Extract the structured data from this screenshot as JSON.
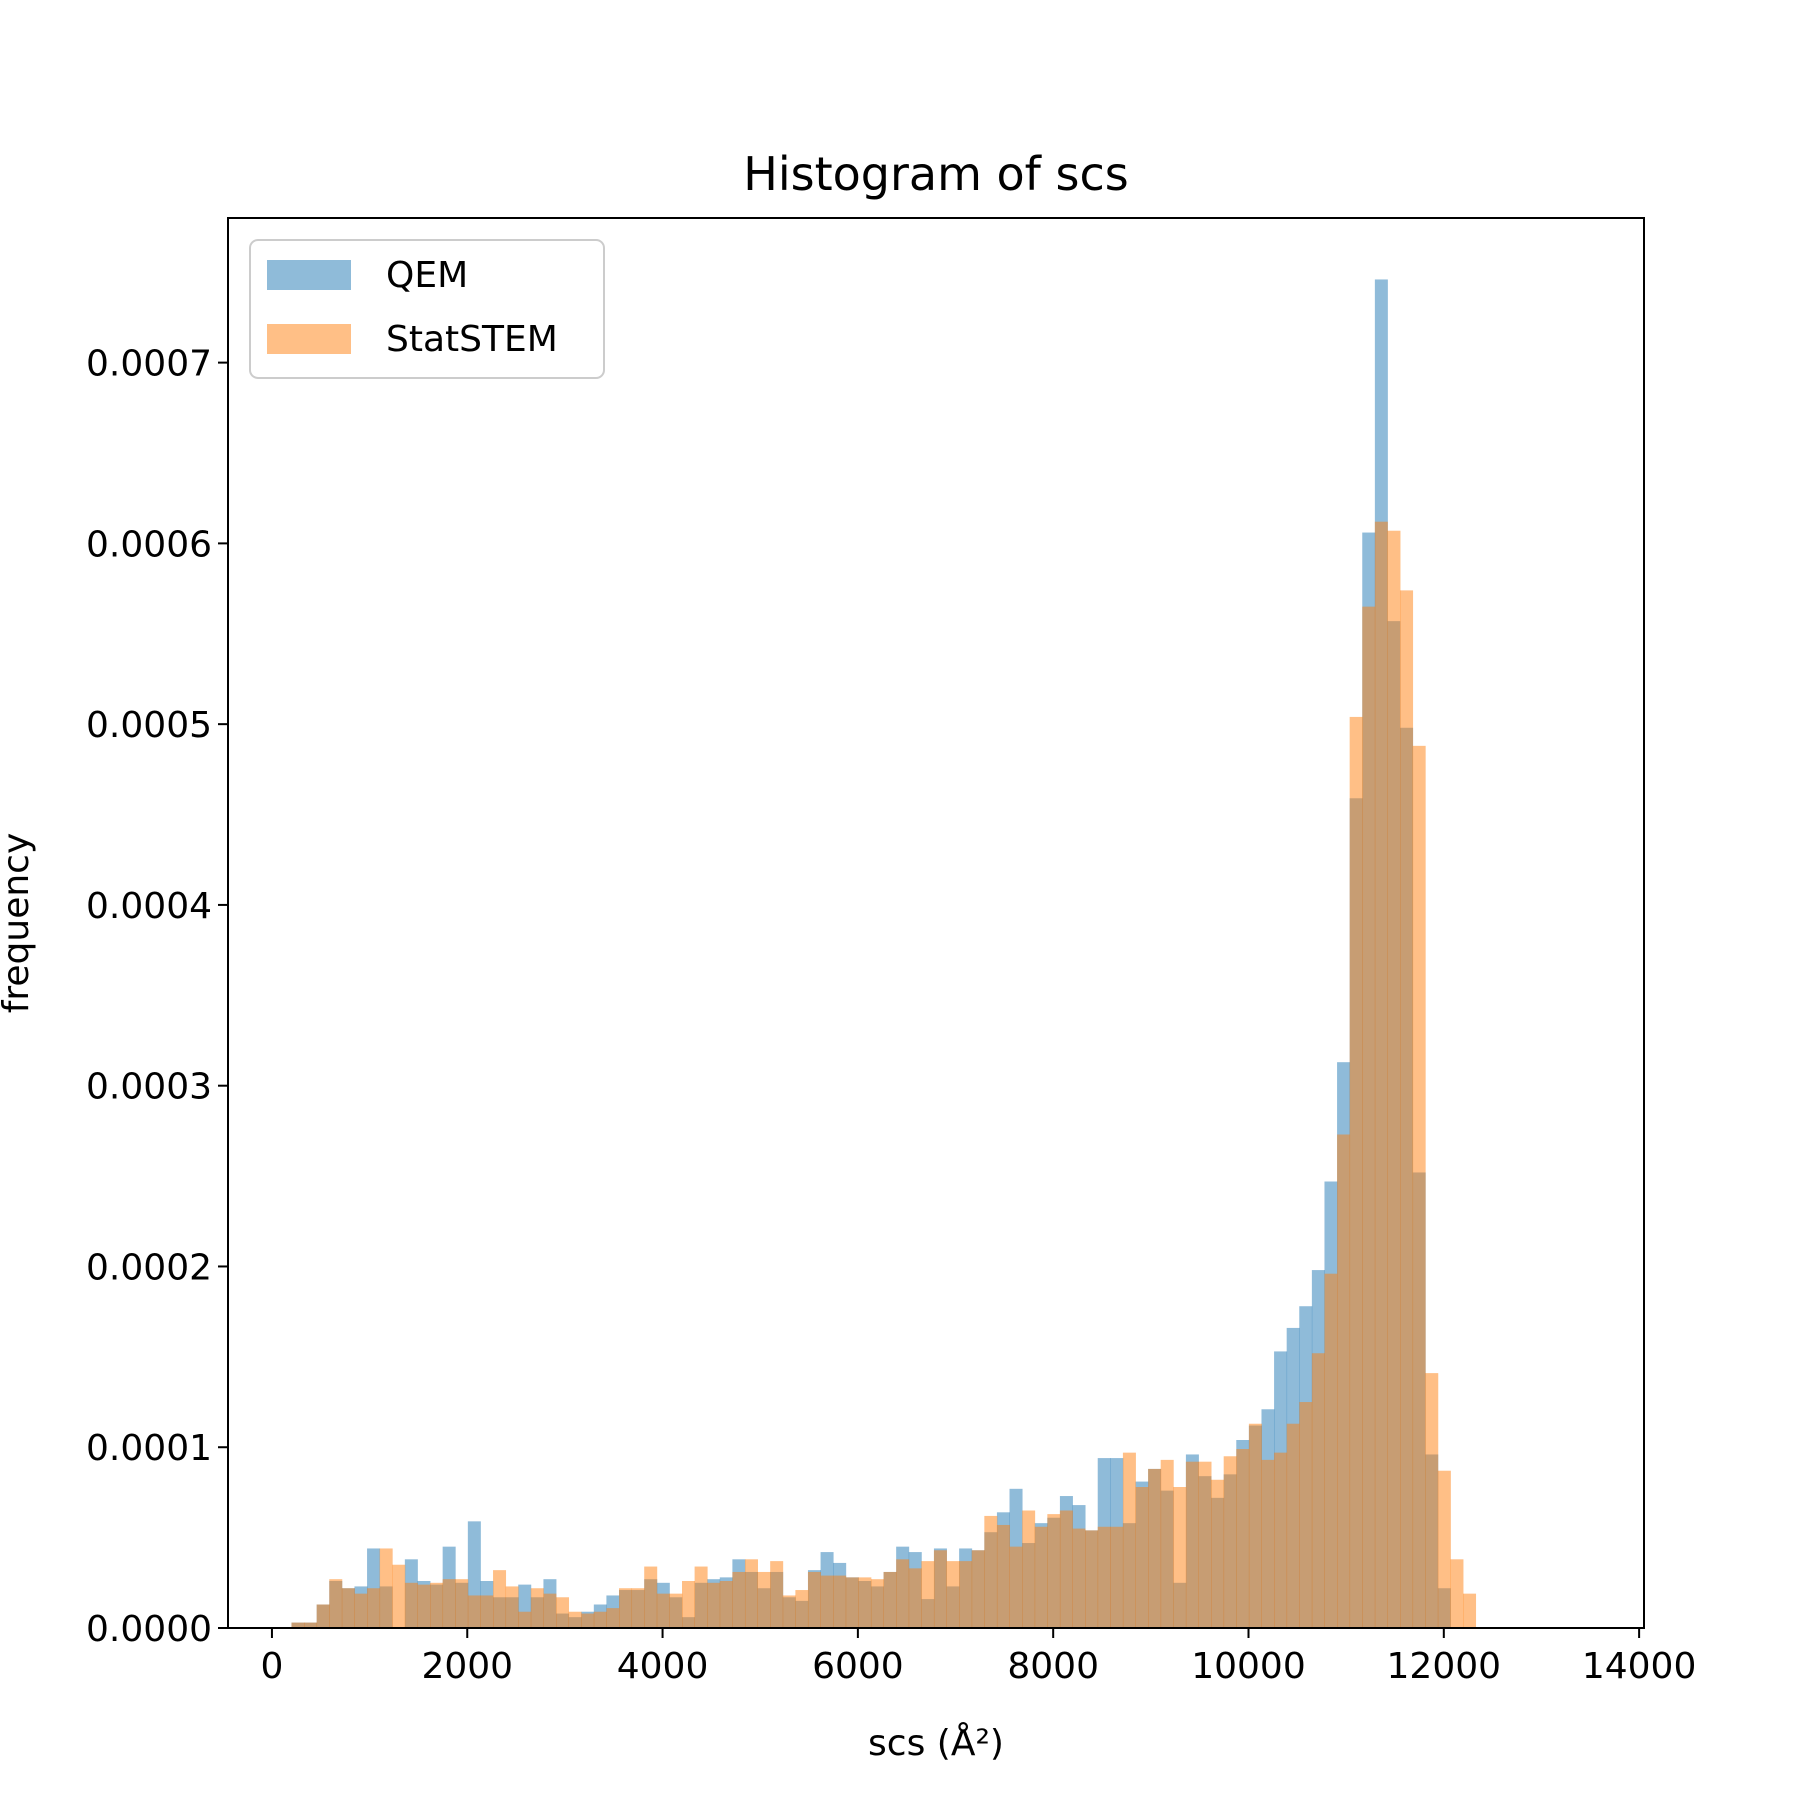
{
  "chart_data": {
    "type": "bar",
    "subtype": "overlaid-histogram",
    "title": "Histogram of scs",
    "xlabel": "scs (Å²)",
    "ylabel": "frequency",
    "xlim": [
      -450,
      14050
    ],
    "ylim": [
      0,
      0.00078
    ],
    "xticks": [
      0,
      2000,
      4000,
      6000,
      8000,
      10000,
      12000,
      14000
    ],
    "xtick_labels": [
      "0",
      "2000",
      "4000",
      "6000",
      "8000",
      "10000",
      "12000",
      "14000"
    ],
    "yticks": [
      0,
      0.0001,
      0.0002,
      0.0003,
      0.0004,
      0.0005,
      0.0006,
      0.0007
    ],
    "ytick_labels": [
      "0.0000",
      "0.0001",
      "0.0002",
      "0.0003",
      "0.0004",
      "0.0005",
      "0.0006",
      "0.0007"
    ],
    "grid": false,
    "legend_position": "top-left",
    "series": [
      {
        "name": "QEM",
        "color": "#1f77b4",
        "alpha": 0.5,
        "bin_start": 200,
        "bin_width": 129,
        "values": [
          3e-06,
          3e-06,
          1.3e-05,
          2.6e-05,
          2.2e-05,
          2.3e-05,
          4.4e-05,
          2.3e-05,
          0,
          3.8e-05,
          2.6e-05,
          2.4e-05,
          4.5e-05,
          2.5e-05,
          5.9e-05,
          2.6e-05,
          1.7e-05,
          1.7e-05,
          2.4e-05,
          1.7e-05,
          2.7e-05,
          8e-06,
          6e-06,
          9e-06,
          1.3e-05,
          1.8e-05,
          2.1e-05,
          2.1e-05,
          2.7e-05,
          2.5e-05,
          1.7e-05,
          6e-06,
          2.5e-05,
          2.7e-05,
          2.8e-05,
          3.8e-05,
          3.1e-05,
          2.2e-05,
          3.1e-05,
          1.7e-05,
          1.5e-05,
          3.2e-05,
          4.2e-05,
          3.6e-05,
          2.8e-05,
          2.6e-05,
          2.3e-05,
          3.1e-05,
          4.5e-05,
          4.2e-05,
          1.6e-05,
          4.4e-05,
          2.3e-05,
          4.4e-05,
          4.3e-05,
          5.3e-05,
          6.4e-05,
          7.7e-05,
          4.7e-05,
          5.8e-05,
          6.1e-05,
          7.3e-05,
          6.8e-05,
          5.4e-05,
          9.4e-05,
          9.4e-05,
          5.8e-05,
          8.1e-05,
          8.8e-05,
          7.6e-05,
          2.5e-05,
          9.6e-05,
          8.4e-05,
          7.2e-05,
          8.5e-05,
          0.000104,
          0.000112,
          0.000121,
          0.000153,
          0.000166,
          0.000178,
          0.000198,
          0.000247,
          0.000313,
          0.000459,
          0.000606,
          0.000746,
          0.000557,
          0.000498,
          0.000252,
          9.6e-05,
          2.2e-05,
          0
        ]
      },
      {
        "name": "StatSTEM",
        "color": "#ff7f0e",
        "alpha": 0.5,
        "bin_start": 200,
        "bin_width": 129,
        "values": [
          3e-06,
          3e-06,
          1.3e-05,
          2.7e-05,
          2.2e-05,
          1.9e-05,
          2.2e-05,
          4.4e-05,
          3.5e-05,
          2.5e-05,
          2.4e-05,
          2.5e-05,
          2.7e-05,
          2.7e-05,
          1.8e-05,
          1.8e-05,
          3.2e-05,
          2.3e-05,
          9e-06,
          2.2e-05,
          1.9e-05,
          1.7e-05,
          9e-06,
          8e-06,
          9e-06,
          1.1e-05,
          2.2e-05,
          2.2e-05,
          3.4e-05,
          1.9e-05,
          1.9e-05,
          2.6e-05,
          3.4e-05,
          2.5e-05,
          2.6e-05,
          3.1e-05,
          3.8e-05,
          3.1e-05,
          3.7e-05,
          1.8e-05,
          2.1e-05,
          3.1e-05,
          2.9e-05,
          2.9e-05,
          2.8e-05,
          2.8e-05,
          2.7e-05,
          3.1e-05,
          3.8e-05,
          3.3e-05,
          3.7e-05,
          4.3e-05,
          3.7e-05,
          3.7e-05,
          4.3e-05,
          6.2e-05,
          5.7e-05,
          4.5e-05,
          6.5e-05,
          5.6e-05,
          6.3e-05,
          6.5e-05,
          5.5e-05,
          5.4e-05,
          5.6e-05,
          5.6e-05,
          9.7e-05,
          7.8e-05,
          8.8e-05,
          9.3e-05,
          7.8e-05,
          9.2e-05,
          9.2e-05,
          8.2e-05,
          9.5e-05,
          9.9e-05,
          0.000113,
          9.3e-05,
          9.7e-05,
          0.000113,
          0.000125,
          0.000152,
          0.000196,
          0.000273,
          0.000504,
          0.000565,
          0.000612,
          0.000607,
          0.000574,
          0.000488,
          0.000141,
          8.7e-05,
          3.8e-05,
          1.9e-05
        ]
      }
    ]
  }
}
